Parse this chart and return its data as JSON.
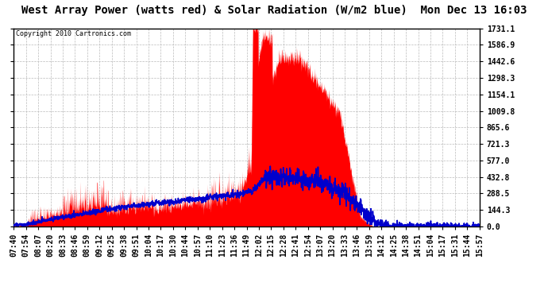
{
  "title": "West Array Power (watts red) & Solar Radiation (W/m2 blue)  Mon Dec 13 16:03",
  "copyright": "Copyright 2010 Cartronics.com",
  "ytick_values": [
    0.0,
    144.3,
    288.5,
    432.8,
    577.0,
    721.3,
    865.6,
    1009.8,
    1154.1,
    1298.3,
    1442.6,
    1586.9,
    1731.1
  ],
  "ytick_labels": [
    "0.0",
    "144.3",
    "288.5",
    "432.8",
    "577.0",
    "721.3",
    "865.6",
    "1009.8",
    "1154.1",
    "1298.3",
    "1442.6",
    "1586.9",
    "1731.1"
  ],
  "ymax": 1731.1,
  "ymin": 0.0,
  "bg_color": "#ffffff",
  "grid_color": "#bbbbbb",
  "red_color": "#ff0000",
  "blue_color": "#0000cc",
  "title_fontsize": 10,
  "tick_fontsize": 7,
  "copyright_fontsize": 6,
  "xtick_labels": [
    "07:40",
    "07:54",
    "08:07",
    "08:20",
    "08:33",
    "08:46",
    "08:59",
    "09:12",
    "09:25",
    "09:38",
    "09:51",
    "10:04",
    "10:17",
    "10:30",
    "10:44",
    "10:57",
    "11:10",
    "11:23",
    "11:36",
    "11:49",
    "12:02",
    "12:15",
    "12:28",
    "12:41",
    "12:54",
    "13:07",
    "13:20",
    "13:33",
    "13:46",
    "13:59",
    "14:12",
    "14:25",
    "14:38",
    "14:51",
    "15:04",
    "15:17",
    "15:31",
    "15:44",
    "15:57"
  ]
}
